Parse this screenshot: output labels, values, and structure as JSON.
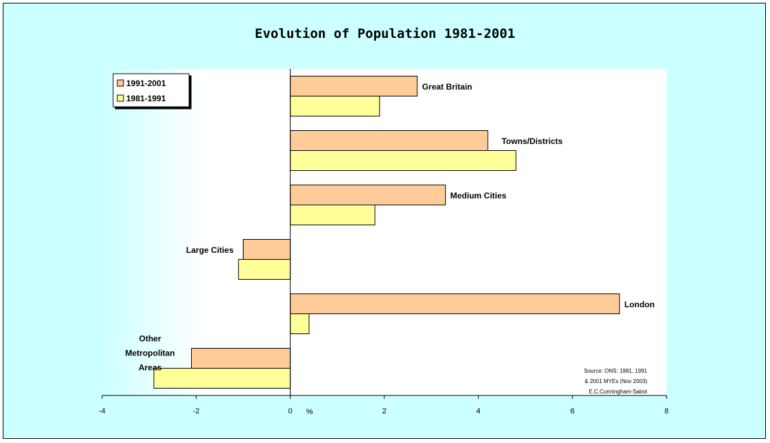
{
  "chart_data": {
    "type": "bar",
    "orientation": "horizontal",
    "title": "Evolution of Population 1981-2001",
    "xlabel": "%",
    "ylabel": "",
    "xlim": [
      -4,
      8
    ],
    "x_ticks": [
      "-4",
      "-2",
      "0",
      "2",
      "4",
      "6",
      "8"
    ],
    "categories": [
      "Great Britain",
      "Towns/Districts",
      "Medium Cities",
      "Large Cities",
      "London",
      "Other Metropolitan Areas"
    ],
    "category_label_lines": [
      [
        "Great Britain"
      ],
      [
        "Towns/Districts"
      ],
      [
        "Medium Cities"
      ],
      [
        "Large Cities"
      ],
      [
        "London"
      ],
      [
        "Other",
        "Metropolitan",
        "Areas"
      ]
    ],
    "series": [
      {
        "name": "1991-2001",
        "color": "#ffcc99",
        "values": [
          2.7,
          4.2,
          3.3,
          -1.0,
          7.0,
          -2.1
        ]
      },
      {
        "name": "1981-1991",
        "color": "#ffff99",
        "values": [
          1.9,
          4.8,
          1.8,
          -1.1,
          0.4,
          -2.9
        ]
      }
    ],
    "legend_position": "top-left",
    "grid": false,
    "annotation": [
      "Source: ONS: 1981, 1991",
      "& 2001 MYEs (Nov 2003)",
      "E.C.Cunningham-Sabot"
    ]
  }
}
